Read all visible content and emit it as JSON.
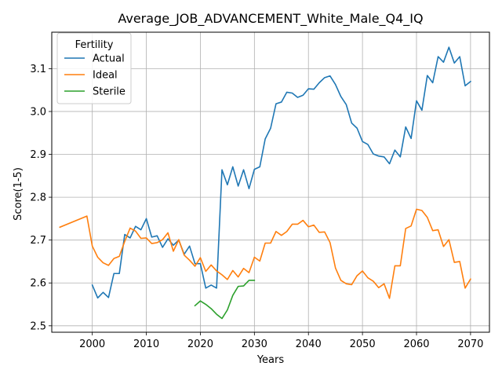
{
  "chart_data": {
    "type": "line",
    "title": "Average_JOB_ADVANCEMENT_White_Male_Q4_IQ",
    "xlabel": "Years",
    "ylabel": "Score(1-5)",
    "xlim": [
      1992.5,
      2073.5
    ],
    "ylim": [
      2.485,
      3.185
    ],
    "xticks": [
      2000,
      2010,
      2020,
      2030,
      2040,
      2050,
      2060,
      2070
    ],
    "yticks": [
      2.5,
      2.6,
      2.7,
      2.8,
      2.9,
      3.0,
      3.1
    ],
    "ytick_labels": [
      "2.5",
      "2.6",
      "2.7",
      "2.8",
      "2.9",
      "3.0",
      "3.1"
    ],
    "grid": true,
    "legend": {
      "title": "Fertility",
      "placement": "top-left"
    },
    "series": [
      {
        "name": "Actual",
        "color": "#1f77b4",
        "x": [
          2000,
          2001,
          2002,
          2003,
          2004,
          2005,
          2006,
          2007,
          2008,
          2009,
          2010,
          2011,
          2012,
          2013,
          2014,
          2015,
          2016,
          2017,
          2018,
          2019,
          2020,
          2021,
          2022,
          2023,
          2024,
          2025,
          2026,
          2027,
          2028,
          2029,
          2030,
          2031,
          2032,
          2033,
          2034,
          2035,
          2036,
          2037,
          2038,
          2039,
          2040,
          2041,
          2042,
          2043,
          2044,
          2045,
          2046,
          2047,
          2048,
          2049,
          2050,
          2051,
          2052,
          2053,
          2054,
          2055,
          2056,
          2057,
          2058,
          2059,
          2060,
          2061,
          2062,
          2063,
          2064,
          2065,
          2066,
          2067,
          2068,
          2069,
          2070
        ],
        "y": [
          2.595,
          2.565,
          2.578,
          2.566,
          2.622,
          2.622,
          2.713,
          2.705,
          2.732,
          2.724,
          2.75,
          2.707,
          2.71,
          2.683,
          2.703,
          2.688,
          2.7,
          2.667,
          2.686,
          2.645,
          2.645,
          2.588,
          2.595,
          2.588,
          2.864,
          2.829,
          2.871,
          2.826,
          2.864,
          2.82,
          2.865,
          2.871,
          2.936,
          2.961,
          3.018,
          3.022,
          3.045,
          3.043,
          3.033,
          3.038,
          3.053,
          3.052,
          3.067,
          3.079,
          3.083,
          3.063,
          3.035,
          3.016,
          2.973,
          2.961,
          2.93,
          2.923,
          2.901,
          2.896,
          2.894,
          2.878,
          2.91,
          2.894,
          2.964,
          2.937,
          3.025,
          3.003,
          3.084,
          3.067,
          3.128,
          3.115,
          3.15,
          3.113,
          3.128,
          3.06,
          3.07
        ]
      },
      {
        "name": "Ideal",
        "color": "#ff7f0e",
        "x": [
          1994,
          1999,
          2000,
          2001,
          2002,
          2003,
          2004,
          2005,
          2006,
          2007,
          2008,
          2009,
          2010,
          2011,
          2012,
          2013,
          2014,
          2015,
          2016,
          2017,
          2018,
          2019,
          2020,
          2021,
          2022,
          2023,
          2024,
          2025,
          2026,
          2027,
          2028,
          2029,
          2030,
          2031,
          2032,
          2033,
          2034,
          2035,
          2036,
          2037,
          2038,
          2039,
          2040,
          2041,
          2042,
          2043,
          2044,
          2045,
          2046,
          2047,
          2048,
          2049,
          2050,
          2051,
          2052,
          2053,
          2054,
          2055,
          2056,
          2057,
          2058,
          2059,
          2060,
          2061,
          2062,
          2063,
          2064,
          2065,
          2066,
          2067,
          2068,
          2069,
          2070
        ],
        "y": [
          2.73,
          2.756,
          2.686,
          2.66,
          2.647,
          2.641,
          2.657,
          2.662,
          2.697,
          2.728,
          2.721,
          2.704,
          2.705,
          2.692,
          2.694,
          2.701,
          2.717,
          2.674,
          2.701,
          2.665,
          2.653,
          2.639,
          2.659,
          2.627,
          2.642,
          2.628,
          2.619,
          2.608,
          2.629,
          2.614,
          2.634,
          2.624,
          2.66,
          2.651,
          2.693,
          2.693,
          2.72,
          2.711,
          2.72,
          2.737,
          2.737,
          2.746,
          2.731,
          2.735,
          2.718,
          2.719,
          2.694,
          2.635,
          2.606,
          2.598,
          2.596,
          2.617,
          2.628,
          2.612,
          2.604,
          2.589,
          2.598,
          2.564,
          2.64,
          2.64,
          2.727,
          2.733,
          2.772,
          2.769,
          2.753,
          2.722,
          2.724,
          2.685,
          2.701,
          2.648,
          2.65,
          2.588,
          2.609
        ]
      },
      {
        "name": "Sterile",
        "color": "#2ca02c",
        "x": [
          2019,
          2020,
          2021,
          2022,
          2023,
          2024,
          2025,
          2026,
          2027,
          2028,
          2029,
          2030
        ],
        "y": [
          2.547,
          2.558,
          2.55,
          2.54,
          2.527,
          2.517,
          2.537,
          2.571,
          2.592,
          2.593,
          2.606,
          2.606
        ]
      }
    ]
  }
}
